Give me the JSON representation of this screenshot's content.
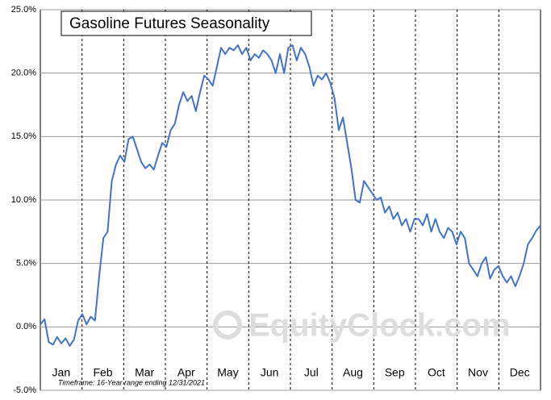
{
  "chart_data": {
    "type": "line",
    "title": "Gasoline Futures Seasonality",
    "note": "Timeframe: 16-Year range ending 12/31/2021",
    "watermark": "EquityClock.com",
    "months": [
      "Jan",
      "Feb",
      "Mar",
      "Apr",
      "May",
      "Jun",
      "Jul",
      "Aug",
      "Sep",
      "Oct",
      "Nov",
      "Dec"
    ],
    "color": "#4472c4",
    "values": [
      0.2,
      0.6,
      -1.2,
      -1.4,
      -0.8,
      -1.3,
      -0.9,
      -1.5,
      -1.0,
      0.5,
      1.0,
      0.2,
      0.8,
      0.5,
      4.0,
      7.0,
      7.5,
      11.5,
      12.8,
      13.5,
      13.0,
      14.8,
      15.0,
      14.0,
      13.0,
      12.5,
      12.8,
      12.4,
      13.5,
      14.5,
      14.2,
      15.5,
      16.0,
      17.5,
      18.5,
      17.8,
      18.2,
      17.0,
      18.5,
      19.8,
      19.5,
      19.0,
      20.5,
      22.0,
      21.5,
      22.0,
      21.8,
      22.2,
      21.5,
      22.0,
      21.0,
      21.5,
      21.2,
      21.8,
      21.5,
      21.0,
      20.0,
      21.5,
      20.0,
      22.0,
      22.2,
      21.0,
      22.0,
      21.5,
      20.5,
      19.0,
      19.8,
      19.5,
      20.0,
      19.2,
      18.0,
      15.5,
      16.5,
      14.5,
      12.5,
      10.0,
      9.8,
      11.5,
      11.0,
      10.5,
      10.0,
      10.2,
      9.0,
      9.5,
      8.5,
      9.0,
      8.0,
      8.5,
      7.5,
      8.5,
      8.5,
      8.0,
      8.9,
      7.5,
      8.5,
      7.5,
      7.0,
      7.8,
      7.5,
      6.5,
      7.5,
      7.0,
      5.0,
      4.5,
      4.0,
      5.0,
      5.5,
      3.8,
      4.5,
      4.8,
      4.0,
      3.5,
      4.0,
      3.2,
      4.0,
      5.0,
      6.5,
      7.0,
      7.6,
      8.0
    ],
    "ylim": [
      -5,
      25
    ],
    "yticks": [
      {
        "value": -5,
        "label": "-5.0%"
      },
      {
        "value": 0,
        "label": "0.0%"
      },
      {
        "value": 5,
        "label": "5.0%"
      },
      {
        "value": 10,
        "label": "10.0%"
      },
      {
        "value": 15,
        "label": "15.0%"
      },
      {
        "value": 20,
        "label": "20.0%"
      },
      {
        "value": 25,
        "label": "25.0%"
      }
    ],
    "grid": true
  }
}
